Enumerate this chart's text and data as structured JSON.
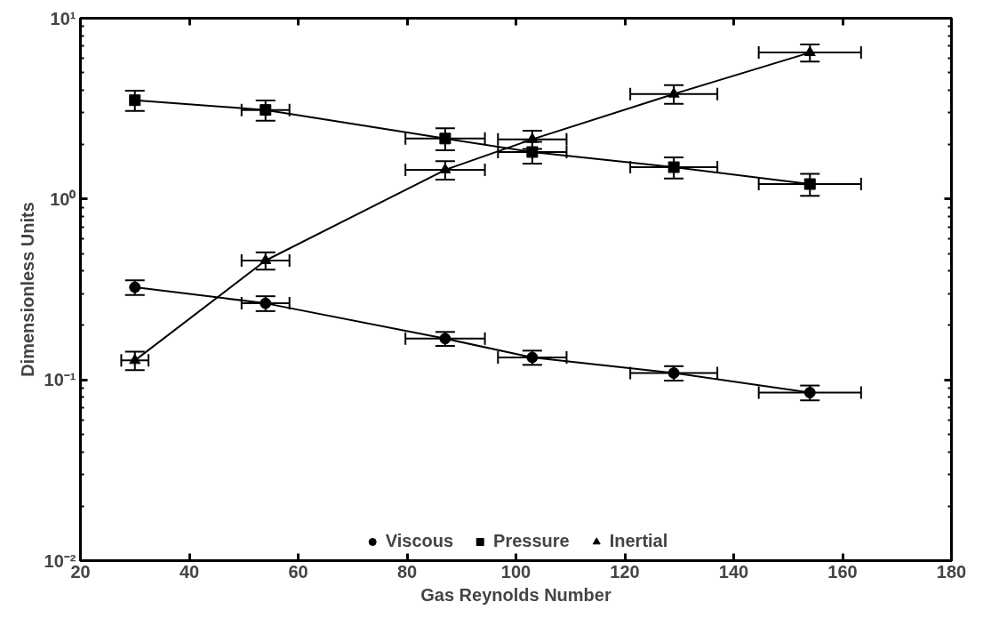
{
  "chart_data": {
    "type": "line",
    "xlabel": "Gas Reynolds Number",
    "ylabel": "Dimensionless Units",
    "log": "y",
    "grid": false,
    "legend": "bottom",
    "line_style": "solid",
    "xlim": [
      20,
      180
    ],
    "xticks": [
      20,
      40,
      60,
      80,
      100,
      120,
      140,
      160,
      180
    ],
    "ylim": [
      0.01,
      10
    ],
    "yticks": [
      {
        "value": 0.01,
        "label": "10⁻²"
      },
      {
        "value": 0.1,
        "label": "10⁻¹"
      },
      {
        "value": 1,
        "label": "10⁰"
      },
      {
        "value": 10,
        "label": "10¹"
      }
    ],
    "x": [
      30,
      54,
      87,
      103,
      129,
      154
    ],
    "series": [
      {
        "name": "Viscous",
        "color": "#000000",
        "marker": "circle",
        "values": [
          0.325,
          0.265,
          0.169,
          0.133,
          0.109,
          0.085
        ],
        "errors": [
          0.03,
          0.025,
          0.015,
          0.012,
          0.01,
          0.008
        ],
        "xerrors": [
          null,
          4.4,
          7.3,
          6.3,
          8,
          9.4
        ]
      },
      {
        "name": "Pressure",
        "color": "#000000",
        "marker": "square",
        "values": [
          3.52,
          3.11,
          2.16,
          1.82,
          1.5,
          1.21
        ],
        "errors": [
          0.45,
          0.4,
          0.3,
          0.25,
          0.2,
          0.17
        ],
        "xerrors": [
          null,
          4.4,
          7.3,
          6.3,
          8,
          9.4
        ]
      },
      {
        "name": "Inertial",
        "color": "#000000",
        "marker": "triangle",
        "values": [
          0.128,
          0.457,
          1.45,
          2.14,
          3.81,
          6.46
        ],
        "errors": [
          0.015,
          0.05,
          0.17,
          0.25,
          0.45,
          0.7
        ],
        "xerrors": [
          2.5,
          4.4,
          7.3,
          6.3,
          8,
          9.4
        ]
      }
    ]
  }
}
